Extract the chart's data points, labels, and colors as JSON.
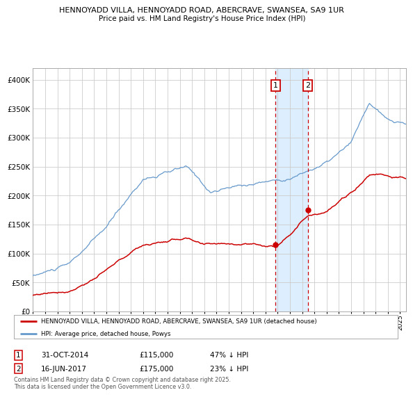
{
  "title_line1": "HENNOYADD VILLA, HENNOYADD ROAD, ABERCRAVE, SWANSEA, SA9 1UR",
  "title_line2": "Price paid vs. HM Land Registry's House Price Index (HPI)",
  "legend_label_red": "HENNOYADD VILLA, HENNOYADD ROAD, ABERCRAVE, SWANSEA, SA9 1UR (detached house)",
  "legend_label_blue": "HPI: Average price, detached house, Powys",
  "annotation1_date": "31-OCT-2014",
  "annotation1_price": 115000,
  "annotation1_text": "47% ↓ HPI",
  "annotation2_date": "16-JUN-2017",
  "annotation2_price": 175000,
  "annotation2_text": "23% ↓ HPI",
  "vline1_x": 2014.83,
  "vline2_x": 2017.45,
  "footnote": "Contains HM Land Registry data © Crown copyright and database right 2025.\nThis data is licensed under the Open Government Licence v3.0.",
  "ylim": [
    0,
    420000
  ],
  "xlim": [
    1995,
    2025.5
  ],
  "red_color": "#cc0000",
  "blue_color": "#6699cc",
  "shade_color": "#ddeeff",
  "grid_color": "#cccccc",
  "bg_color": "#ffffff"
}
